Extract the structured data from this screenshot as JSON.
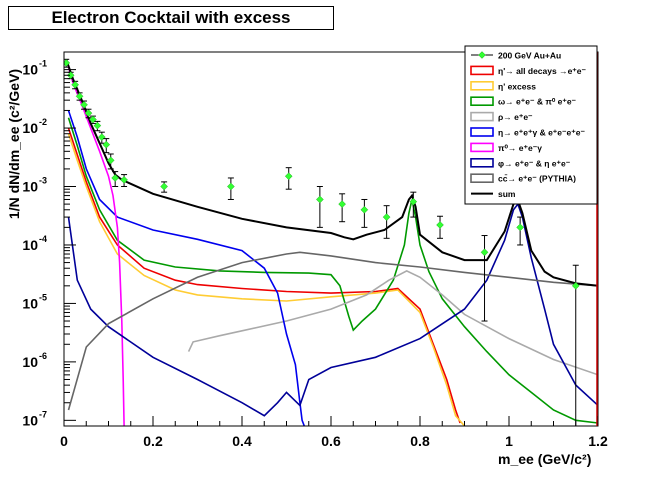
{
  "chart_data": {
    "type": "line",
    "title": "Electron Cocktail with excess",
    "ylabel": "1/N dN/dm_ee (c²/GeV)",
    "xlabel": "m_ee (GeV/c²)",
    "xlim": [
      0,
      1.2
    ],
    "ylim": [
      8e-08,
      0.2
    ],
    "yscale": "log",
    "x_ticks": [
      "0",
      "0.2",
      "0.4",
      "0.6",
      "0.8",
      "1",
      "1.2"
    ],
    "x_tick_values": [
      0,
      0.2,
      0.4,
      0.6,
      0.8,
      1.0,
      1.2
    ],
    "y_ticks": [
      {
        "value": 1e-07,
        "exp": "-7"
      },
      {
        "value": 1e-06,
        "exp": "-6"
      },
      {
        "value": 1e-05,
        "exp": "-5"
      },
      {
        "value": 0.0001,
        "exp": "-4"
      },
      {
        "value": 0.001,
        "exp": "-3"
      },
      {
        "value": 0.01,
        "exp": "-2"
      },
      {
        "value": 0.1,
        "exp": "-1"
      }
    ],
    "legend_position": "top-right",
    "series": [
      {
        "id": "data",
        "name": "200 GeV Au+Au",
        "type": "points",
        "color": "#33ff33",
        "points": [
          [
            0.005,
            0.13,
            0.02
          ],
          [
            0.015,
            0.08,
            0.01
          ],
          [
            0.025,
            0.055,
            0.008
          ],
          [
            0.035,
            0.035,
            0.005
          ],
          [
            0.045,
            0.025,
            0.004
          ],
          [
            0.055,
            0.018,
            0.003
          ],
          [
            0.065,
            0.014,
            0.002
          ],
          [
            0.075,
            0.011,
            0.002
          ],
          [
            0.085,
            0.007,
            0.0015
          ],
          [
            0.095,
            0.0052,
            0.0014
          ],
          [
            0.105,
            0.0028,
            0.0008
          ],
          [
            0.115,
            0.0014,
            0.0004
          ],
          [
            0.135,
            0.0013,
            0.0003
          ],
          [
            0.225,
            0.001,
            0.0002
          ],
          [
            0.375,
            0.001,
            0.0004
          ],
          [
            0.505,
            0.0015,
            0.0006
          ],
          [
            0.575,
            0.0006,
            0.0004
          ],
          [
            0.625,
            0.0005,
            0.00025
          ],
          [
            0.675,
            0.0004,
            0.0002
          ],
          [
            0.725,
            0.0003,
            0.00017
          ],
          [
            0.785,
            0.00055,
            0.00025
          ],
          [
            0.845,
            0.00022,
            9e-05
          ],
          [
            0.945,
            7.5e-05,
            7e-05
          ],
          [
            1.025,
            0.0002,
            0.0001
          ],
          [
            1.15,
            2e-05,
            2.5e-05
          ]
        ]
      },
      {
        "id": "etap",
        "name": "η'→ all decays →e⁺e⁻",
        "color": "#ee0000",
        "points": [
          [
            0.01,
            0.01
          ],
          [
            0.03,
            0.0035
          ],
          [
            0.05,
            0.0012
          ],
          [
            0.08,
            0.0003
          ],
          [
            0.12,
            0.0001
          ],
          [
            0.18,
            4e-05
          ],
          [
            0.25,
            2.5e-05
          ],
          [
            0.3,
            2.1e-05
          ],
          [
            0.4,
            1.8e-05
          ],
          [
            0.5,
            1.6e-05
          ],
          [
            0.6,
            1.5e-05
          ],
          [
            0.7,
            1.6e-05
          ],
          [
            0.75,
            1.8e-05
          ],
          [
            0.8,
            8e-06
          ],
          [
            0.83,
            2e-06
          ],
          [
            0.86,
            5e-07
          ],
          [
            0.88,
            1.5e-07
          ],
          [
            0.89,
            9e-08
          ]
        ]
      },
      {
        "id": "etap_excess",
        "name": "η' excess",
        "color": "#ffcc33",
        "points": [
          [
            0.01,
            0.008
          ],
          [
            0.03,
            0.0028
          ],
          [
            0.05,
            0.001
          ],
          [
            0.08,
            0.00025
          ],
          [
            0.12,
            7e-05
          ],
          [
            0.18,
            3e-05
          ],
          [
            0.25,
            1.7e-05
          ],
          [
            0.3,
            1.4e-05
          ],
          [
            0.4,
            1.2e-05
          ],
          [
            0.5,
            1.1e-05
          ],
          [
            0.6,
            1.3e-05
          ],
          [
            0.7,
            1.5e-05
          ],
          [
            0.75,
            1.7e-05
          ],
          [
            0.8,
            7e-06
          ],
          [
            0.83,
            1.8e-06
          ],
          [
            0.86,
            4e-07
          ],
          [
            0.88,
            1.2e-07
          ],
          [
            0.9,
            8e-08
          ]
        ]
      },
      {
        "id": "omega",
        "name": "ω→ e⁺e⁻ & π⁰ e⁺e⁻",
        "color": "#009900",
        "points": [
          [
            0.01,
            0.015
          ],
          [
            0.03,
            0.005
          ],
          [
            0.05,
            0.0015
          ],
          [
            0.08,
            0.0004
          ],
          [
            0.12,
            0.00012
          ],
          [
            0.18,
            5.5e-05
          ],
          [
            0.25,
            4.2e-05
          ],
          [
            0.35,
            3.6e-05
          ],
          [
            0.45,
            3.4e-05
          ],
          [
            0.55,
            3.3e-05
          ],
          [
            0.6,
            3.1e-05
          ],
          [
            0.62,
            2e-05
          ],
          [
            0.64,
            6e-06
          ],
          [
            0.65,
            3.5e-06
          ],
          [
            0.67,
            5e-06
          ],
          [
            0.7,
            8e-06
          ],
          [
            0.74,
            2.5e-05
          ],
          [
            0.765,
            0.0001
          ],
          [
            0.775,
            0.00035
          ],
          [
            0.782,
            0.0006
          ],
          [
            0.79,
            0.0003
          ],
          [
            0.8,
            0.0001
          ],
          [
            0.82,
            3.5e-05
          ],
          [
            0.85,
            1.2e-05
          ],
          [
            0.9,
            4e-06
          ],
          [
            0.95,
            1.5e-06
          ],
          [
            1.0,
            6e-07
          ],
          [
            1.05,
            3e-07
          ],
          [
            1.1,
            1.5e-07
          ],
          [
            1.15,
            1e-07
          ],
          [
            1.2,
            9e-08
          ]
        ]
      },
      {
        "id": "rho",
        "name": "ρ→ e⁺e⁻",
        "color": "#aaaaaa",
        "points": [
          [
            0.28,
            1.5e-06
          ],
          [
            0.29,
            2.2e-06
          ],
          [
            0.35,
            2.8e-06
          ],
          [
            0.4,
            3.4e-06
          ],
          [
            0.5,
            5e-06
          ],
          [
            0.6,
            8e-06
          ],
          [
            0.68,
            1.4e-05
          ],
          [
            0.73,
            2.5e-05
          ],
          [
            0.77,
            3.6e-05
          ],
          [
            0.8,
            2.8e-05
          ],
          [
            0.85,
            1.4e-05
          ],
          [
            0.9,
            6.5e-06
          ],
          [
            1.0,
            2.5e-06
          ],
          [
            1.1,
            1.1e-06
          ],
          [
            1.2,
            6e-07
          ]
        ]
      },
      {
        "id": "eta",
        "name": "η→ e⁺e⁺γ & e⁺e⁻e⁺e⁻",
        "color": "#0000ee",
        "points": [
          [
            0.01,
            0.02
          ],
          [
            0.03,
            0.007
          ],
          [
            0.05,
            0.002
          ],
          [
            0.08,
            0.0006
          ],
          [
            0.12,
            0.0003
          ],
          [
            0.2,
            0.00018
          ],
          [
            0.3,
            0.000125
          ],
          [
            0.4,
            8e-05
          ],
          [
            0.45,
            4e-05
          ],
          [
            0.48,
            1.5e-05
          ],
          [
            0.5,
            3e-06
          ],
          [
            0.52,
            9e-07
          ],
          [
            0.53,
            2e-07
          ],
          [
            0.535,
            1e-07
          ],
          [
            0.54,
            8e-08
          ]
        ]
      },
      {
        "id": "pi0",
        "name": "π⁰→ e⁺e⁻γ",
        "color": "#ff00ff",
        "points": [
          [
            0.005,
            0.15
          ],
          [
            0.02,
            0.06
          ],
          [
            0.04,
            0.025
          ],
          [
            0.06,
            0.01
          ],
          [
            0.08,
            0.004
          ],
          [
            0.1,
            0.0015
          ],
          [
            0.11,
            0.0007
          ],
          [
            0.12,
            0.0002
          ],
          [
            0.125,
            5e-05
          ],
          [
            0.13,
            5e-06
          ],
          [
            0.133,
            5e-07
          ],
          [
            0.135,
            8e-08
          ]
        ]
      },
      {
        "id": "phi",
        "name": "φ→ e⁺e⁻ & η e⁺e⁻",
        "color": "#000099",
        "points": [
          [
            0.01,
            0.0003
          ],
          [
            0.03,
            2.5e-05
          ],
          [
            0.06,
            8e-06
          ],
          [
            0.1,
            4e-06
          ],
          [
            0.2,
            1.2e-06
          ],
          [
            0.3,
            5e-07
          ],
          [
            0.4,
            2e-07
          ],
          [
            0.45,
            1.2e-07
          ],
          [
            0.48,
            2e-07
          ],
          [
            0.5,
            3e-07
          ],
          [
            0.53,
            1.8e-07
          ],
          [
            0.55,
            5e-07
          ],
          [
            0.6,
            8e-07
          ],
          [
            0.7,
            1.2e-06
          ],
          [
            0.8,
            2.5e-06
          ],
          [
            0.9,
            8e-06
          ],
          [
            0.95,
            2.5e-05
          ],
          [
            0.99,
            0.00012
          ],
          [
            1.01,
            0.0004
          ],
          [
            1.02,
            0.0005
          ],
          [
            1.03,
            0.0003
          ],
          [
            1.05,
            6e-05
          ],
          [
            1.08,
            8e-06
          ],
          [
            1.1,
            2e-06
          ],
          [
            1.15,
            4e-07
          ],
          [
            1.2,
            1.8e-07
          ]
        ]
      },
      {
        "id": "ccbar",
        "name": "cc̄→ e⁺e⁻ (PYTHIA)",
        "color": "#666666",
        "points": [
          [
            0.01,
            1.5e-07
          ],
          [
            0.05,
            1.8e-06
          ],
          [
            0.1,
            4.5e-06
          ],
          [
            0.2,
            1.2e-05
          ],
          [
            0.3,
            2.8e-05
          ],
          [
            0.4,
            5e-05
          ],
          [
            0.5,
            7e-05
          ],
          [
            0.53,
            7.5e-05
          ],
          [
            0.6,
            6.5e-05
          ],
          [
            0.7,
            5e-05
          ],
          [
            0.8,
            4.2e-05
          ],
          [
            0.9,
            3.4e-05
          ],
          [
            1.0,
            2.8e-05
          ],
          [
            1.1,
            2.3e-05
          ],
          [
            1.2,
            2e-05
          ]
        ]
      },
      {
        "id": "sum",
        "name": "sum",
        "color": "#000000",
        "points": [
          [
            0.005,
            0.15
          ],
          [
            0.02,
            0.07
          ],
          [
            0.04,
            0.03
          ],
          [
            0.06,
            0.012
          ],
          [
            0.08,
            0.0055
          ],
          [
            0.1,
            0.0025
          ],
          [
            0.115,
            0.0016
          ],
          [
            0.13,
            0.0013
          ],
          [
            0.2,
            0.00075
          ],
          [
            0.3,
            0.00045
          ],
          [
            0.4,
            0.00028
          ],
          [
            0.5,
            0.0002
          ],
          [
            0.6,
            0.00016
          ],
          [
            0.63,
            0.000135
          ],
          [
            0.65,
            0.000125
          ],
          [
            0.68,
            0.00015
          ],
          [
            0.72,
            0.00018
          ],
          [
            0.76,
            0.0003
          ],
          [
            0.775,
            0.0006
          ],
          [
            0.782,
            0.0007
          ],
          [
            0.79,
            0.00045
          ],
          [
            0.8,
            0.00015
          ],
          [
            0.85,
            7.5e-05
          ],
          [
            0.9,
            5.5e-05
          ],
          [
            0.95,
            5.5e-05
          ],
          [
            0.99,
            0.00017
          ],
          [
            1.01,
            0.0005
          ],
          [
            1.02,
            0.00058
          ],
          [
            1.03,
            0.00035
          ],
          [
            1.05,
            8e-05
          ],
          [
            1.08,
            3.5e-05
          ],
          [
            1.1,
            2.8e-05
          ],
          [
            1.15,
            2.2e-05
          ],
          [
            1.2,
            2e-05
          ]
        ]
      }
    ]
  }
}
